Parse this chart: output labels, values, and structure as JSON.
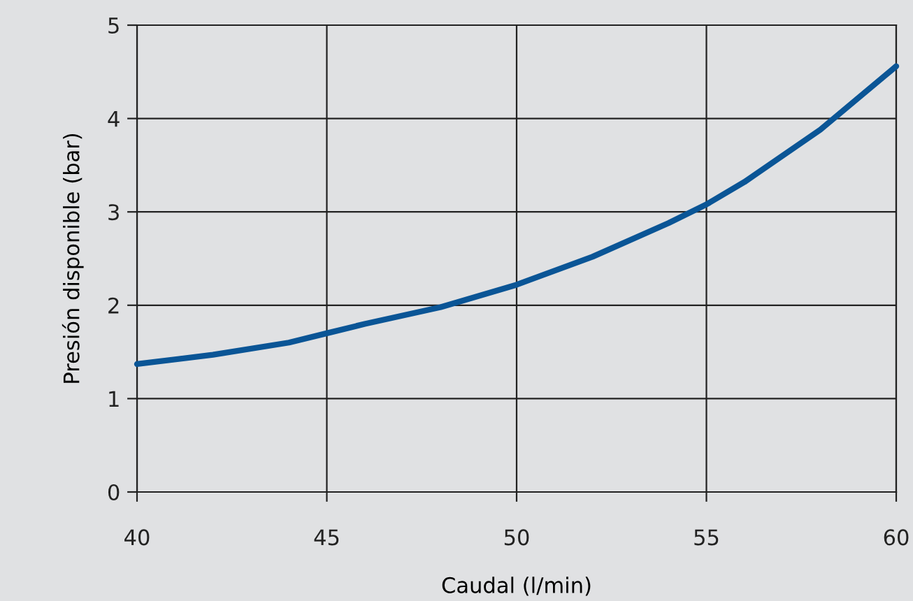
{
  "chart_data": {
    "type": "line",
    "xlabel": "Caudal (l/min)",
    "ylabel": "Presión disponible (bar)",
    "x": [
      40,
      42,
      44,
      45,
      46,
      48,
      50,
      52,
      54,
      55,
      56,
      58,
      60
    ],
    "series": [
      {
        "color": "#0a5596",
        "values": [
          1.37,
          1.47,
          1.6,
          1.7,
          1.8,
          1.98,
          2.22,
          2.52,
          2.88,
          3.08,
          3.32,
          3.88,
          4.56
        ]
      }
    ],
    "xlim": [
      40,
      60
    ],
    "ylim": [
      0,
      5
    ],
    "xticks": [
      40,
      45,
      50,
      55,
      60
    ],
    "yticks": [
      0,
      1,
      2,
      3,
      4,
      5
    ],
    "grid": true,
    "marker": "none",
    "line_style": "solid"
  }
}
